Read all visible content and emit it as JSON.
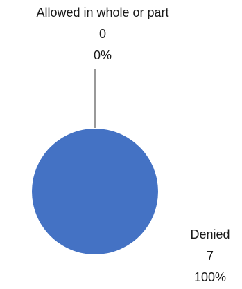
{
  "chart_data": {
    "type": "pie",
    "title": "",
    "categories": [
      "Allowed in whole or part",
      "Denied"
    ],
    "values": [
      0,
      7
    ],
    "percent_labels": [
      "0%",
      "100%"
    ],
    "value_labels": [
      "0",
      "7"
    ],
    "colors": [
      "#4472C4",
      "#4472C4"
    ],
    "legend": "none",
    "data_labels": "outside, with leader line for zero slice"
  }
}
